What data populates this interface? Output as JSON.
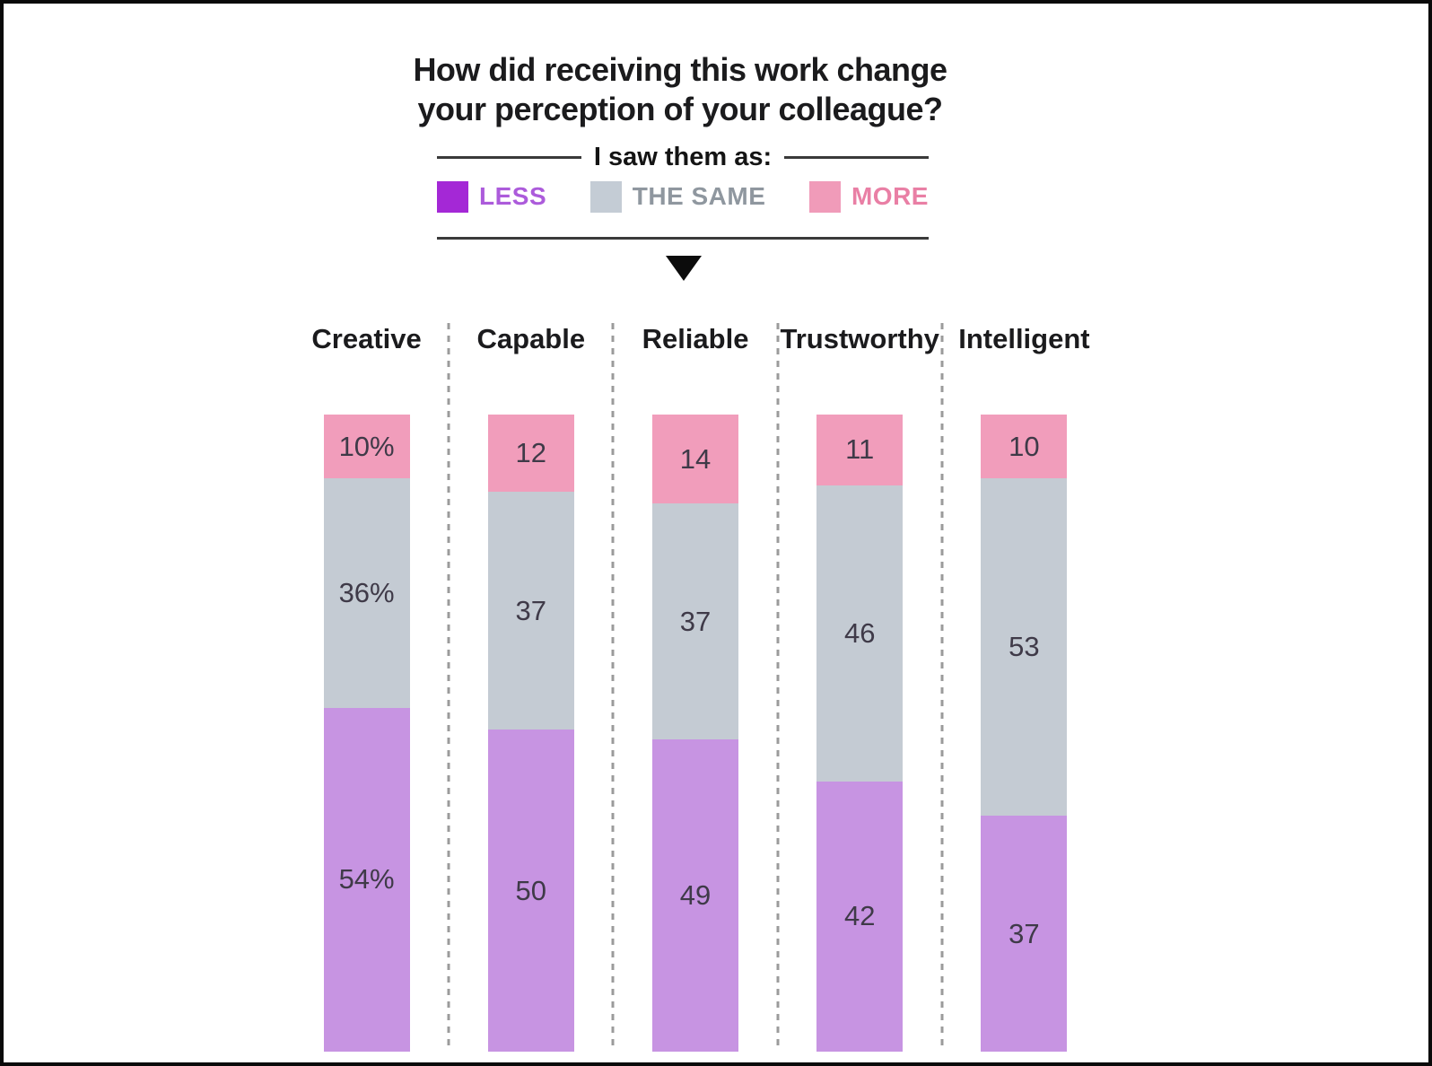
{
  "title": {
    "line1": "How did receiving this work change",
    "line2": "your perception of your colleague?"
  },
  "legend": {
    "heading": "I saw them as:",
    "items": [
      {
        "id": "less",
        "label": "LESS",
        "swatch_color": "#A428D6",
        "label_color": "#AC5BDB"
      },
      {
        "id": "same",
        "label": "THE SAME",
        "swatch_color": "#C4CCD5",
        "label_color": "#8F979F"
      },
      {
        "id": "more",
        "label": "MORE",
        "swatch_color": "#F09BB9",
        "label_color": "#E97FA5"
      }
    ]
  },
  "chart_data": {
    "type": "bar",
    "subtype": "stacked-vertical-columns",
    "title": "How did receiving this work change your perception of your colleague?",
    "legend_position": "top",
    "value_unit": "percent of respondents",
    "ylim": [
      0,
      100
    ],
    "grid": false,
    "categories": [
      "Creative",
      "Capable",
      "Reliable",
      "Trustworthy",
      "Intelligent"
    ],
    "stack_order_top_to_bottom": [
      "MORE",
      "THE SAME",
      "LESS"
    ],
    "series": [
      {
        "name": "MORE",
        "color": "#F19DBB",
        "values": [
          10,
          12,
          14,
          11,
          10
        ],
        "display_labels": [
          "10%",
          "12",
          "14",
          "11",
          "10"
        ]
      },
      {
        "name": "THE SAME",
        "color": "#C4CBD3",
        "values": [
          36,
          37,
          37,
          46,
          53
        ],
        "display_labels": [
          "36%",
          "37",
          "37",
          "46",
          "53"
        ]
      },
      {
        "name": "LESS",
        "color": "#C794E2",
        "values": [
          54,
          50,
          49,
          42,
          37
        ],
        "display_labels": [
          "54%",
          "50",
          "49",
          "42",
          "37"
        ]
      }
    ]
  },
  "marker": {
    "down_triangle": "down-arrow"
  },
  "colors": {
    "label_ink": "#3F3A48",
    "header_ink": "#1B1B1D",
    "rule": "#3A3A3A",
    "column_separator": "#9B9B9B",
    "frame_border": "#0A0A0A",
    "background": "#FFFFFF"
  }
}
